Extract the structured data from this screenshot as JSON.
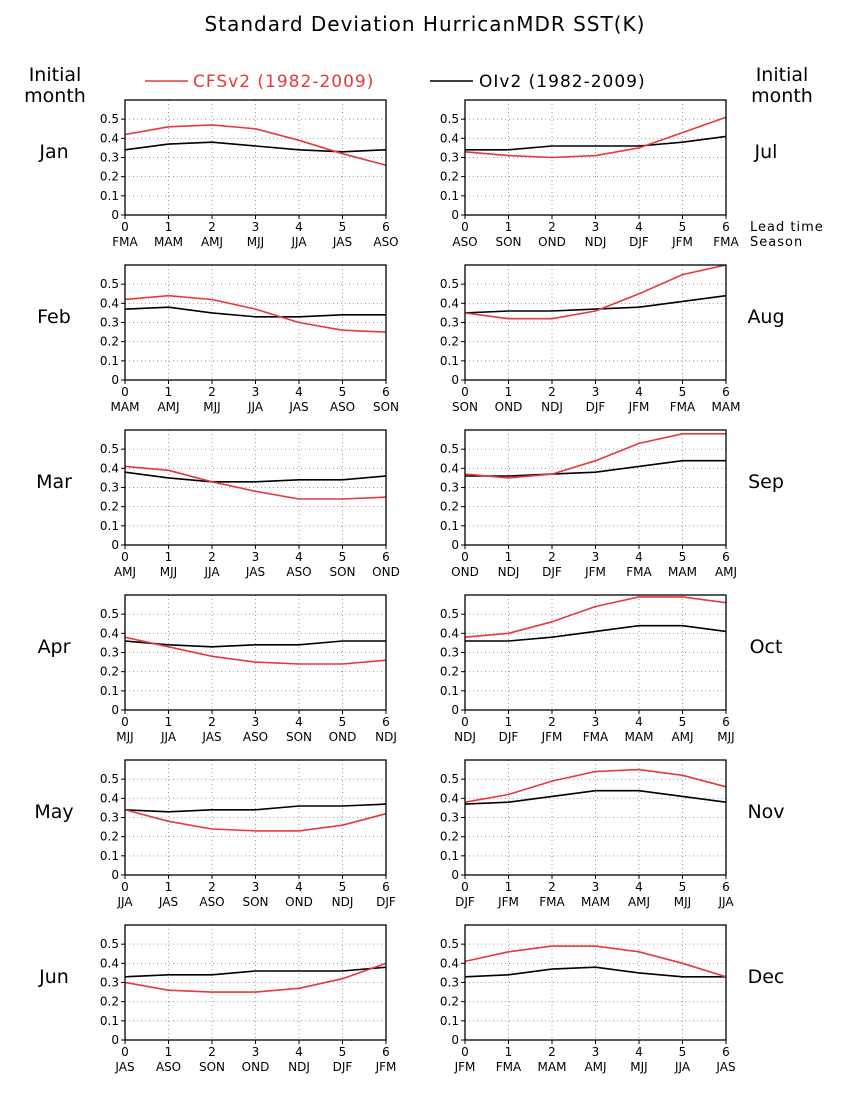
{
  "chart_data": {
    "type": "line",
    "title": "Standard Deviation HurricanMDR SST(K)",
    "left_header": [
      "Initial",
      "month"
    ],
    "right_header": [
      "Initial",
      "month"
    ],
    "lead_label": "Lead time",
    "season_label": "Season",
    "legend": [
      {
        "label": "CFSv2 (1982-2009)",
        "color": "#e8393a"
      },
      {
        "label": "OIv2 (1982-2009)",
        "color": "#000000"
      }
    ],
    "ylim": [
      0,
      0.6
    ],
    "yticks": [
      "0",
      "0.1",
      "0.2",
      "0.3",
      "0.4",
      "0.5"
    ],
    "x": [
      "0",
      "1",
      "2",
      "3",
      "4",
      "5",
      "6"
    ],
    "panels": [
      {
        "month": "Jan",
        "seasons": [
          "FMA",
          "MAM",
          "AMJ",
          "MJJ",
          "JJA",
          "JAS",
          "ASO"
        ],
        "cfsv2": [
          0.42,
          0.46,
          0.47,
          0.45,
          0.39,
          0.32,
          0.26
        ],
        "oiv2": [
          0.34,
          0.37,
          0.38,
          0.36,
          0.34,
          0.33,
          0.34
        ]
      },
      {
        "month": "Jul",
        "seasons": [
          "ASO",
          "SON",
          "OND",
          "NDJ",
          "DJF",
          "JFM",
          "FMA"
        ],
        "cfsv2": [
          0.33,
          0.31,
          0.3,
          0.31,
          0.35,
          0.43,
          0.51
        ],
        "oiv2": [
          0.34,
          0.34,
          0.36,
          0.36,
          0.36,
          0.38,
          0.41
        ]
      },
      {
        "month": "Feb",
        "seasons": [
          "MAM",
          "AMJ",
          "MJJ",
          "JJA",
          "JAS",
          "ASO",
          "SON"
        ],
        "cfsv2": [
          0.42,
          0.44,
          0.42,
          0.37,
          0.3,
          0.26,
          0.25
        ],
        "oiv2": [
          0.37,
          0.38,
          0.35,
          0.33,
          0.33,
          0.34,
          0.34
        ]
      },
      {
        "month": "Aug",
        "seasons": [
          "SON",
          "OND",
          "NDJ",
          "DJF",
          "JFM",
          "FMA",
          "MAM"
        ],
        "cfsv2": [
          0.35,
          0.32,
          0.32,
          0.36,
          0.45,
          0.55,
          0.6
        ],
        "oiv2": [
          0.35,
          0.36,
          0.36,
          0.37,
          0.38,
          0.41,
          0.44
        ]
      },
      {
        "month": "Mar",
        "seasons": [
          "AMJ",
          "MJJ",
          "JJA",
          "JAS",
          "ASO",
          "SON",
          "OND"
        ],
        "cfsv2": [
          0.41,
          0.39,
          0.33,
          0.28,
          0.24,
          0.24,
          0.25
        ],
        "oiv2": [
          0.38,
          0.35,
          0.33,
          0.33,
          0.34,
          0.34,
          0.36
        ]
      },
      {
        "month": "Sep",
        "seasons": [
          "OND",
          "NDJ",
          "DJF",
          "JFM",
          "FMA",
          "MAM",
          "AMJ"
        ],
        "cfsv2": [
          0.37,
          0.35,
          0.37,
          0.44,
          0.53,
          0.58,
          0.58
        ],
        "oiv2": [
          0.36,
          0.36,
          0.37,
          0.38,
          0.41,
          0.44,
          0.44
        ]
      },
      {
        "month": "Apr",
        "seasons": [
          "MJJ",
          "JJA",
          "JAS",
          "ASO",
          "SON",
          "OND",
          "NDJ"
        ],
        "cfsv2": [
          0.38,
          0.33,
          0.28,
          0.25,
          0.24,
          0.24,
          0.26
        ],
        "oiv2": [
          0.36,
          0.34,
          0.33,
          0.34,
          0.34,
          0.36,
          0.36
        ]
      },
      {
        "month": "Oct",
        "seasons": [
          "NDJ",
          "DJF",
          "JFM",
          "FMA",
          "MAM",
          "AMJ",
          "MJJ"
        ],
        "cfsv2": [
          0.38,
          0.4,
          0.46,
          0.54,
          0.59,
          0.59,
          0.56
        ],
        "oiv2": [
          0.36,
          0.36,
          0.38,
          0.41,
          0.44,
          0.44,
          0.41
        ]
      },
      {
        "month": "May",
        "seasons": [
          "JJA",
          "JAS",
          "ASO",
          "SON",
          "OND",
          "NDJ",
          "DJF"
        ],
        "cfsv2": [
          0.34,
          0.28,
          0.24,
          0.23,
          0.23,
          0.26,
          0.32
        ],
        "oiv2": [
          0.34,
          0.33,
          0.34,
          0.34,
          0.36,
          0.36,
          0.37
        ]
      },
      {
        "month": "Nov",
        "seasons": [
          "DJF",
          "JFM",
          "FMA",
          "MAM",
          "AMJ",
          "MJJ",
          "JJA"
        ],
        "cfsv2": [
          0.38,
          0.42,
          0.49,
          0.54,
          0.55,
          0.52,
          0.46
        ],
        "oiv2": [
          0.37,
          0.38,
          0.41,
          0.44,
          0.44,
          0.41,
          0.38
        ]
      },
      {
        "month": "Jun",
        "seasons": [
          "JAS",
          "ASO",
          "SON",
          "OND",
          "NDJ",
          "DJF",
          "JFM"
        ],
        "cfsv2": [
          0.3,
          0.26,
          0.25,
          0.25,
          0.27,
          0.32,
          0.4
        ],
        "oiv2": [
          0.33,
          0.34,
          0.34,
          0.36,
          0.36,
          0.36,
          0.38
        ]
      },
      {
        "month": "Dec",
        "seasons": [
          "JFM",
          "FMA",
          "MAM",
          "AMJ",
          "MJJ",
          "JJA",
          "JAS"
        ],
        "cfsv2": [
          0.41,
          0.46,
          0.49,
          0.49,
          0.46,
          0.4,
          0.33
        ],
        "oiv2": [
          0.33,
          0.34,
          0.37,
          0.38,
          0.35,
          0.33,
          0.33
        ]
      }
    ]
  }
}
